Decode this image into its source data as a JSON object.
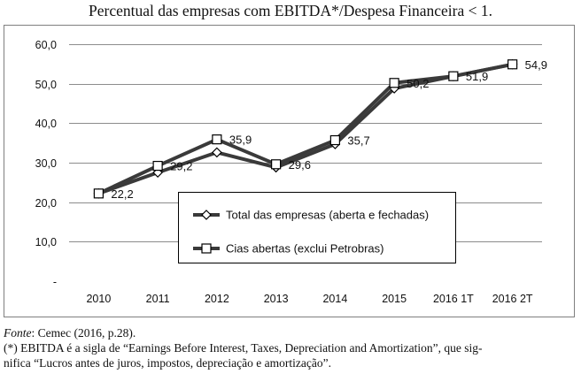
{
  "title": "Percentual das empresas com EBITDA*/Despesa Financeira < 1.",
  "chart_data": {
    "type": "line",
    "categories": [
      "2010",
      "2011",
      "2012",
      "2013",
      "2014",
      "2015",
      "2016 1T",
      "2016 2T"
    ],
    "ylim": [
      0,
      60
    ],
    "yticks": [
      "-",
      "10,0",
      "20,0",
      "30,0",
      "40,0",
      "50,0",
      "60,0"
    ],
    "grid": true,
    "legend_position": "center-bottom",
    "series": [
      {
        "name": "Total das empresas (aberta e fechadas)",
        "marker": "diamond",
        "values": [
          22.2,
          27.5,
          32.6,
          28.8,
          34.7,
          48.8,
          51.9,
          54.9
        ]
      },
      {
        "name": "Cias abertas (exclui Petrobras)",
        "marker": "square",
        "values": [
          22.2,
          29.2,
          35.9,
          29.6,
          35.7,
          50.2,
          51.9,
          54.9
        ]
      }
    ],
    "data_labels": [
      {
        "category_index": 0,
        "value": 22.2,
        "text": "22,2"
      },
      {
        "category_index": 1,
        "value": 29.2,
        "text": "29,2"
      },
      {
        "category_index": 2,
        "value": 35.9,
        "text": "35,9"
      },
      {
        "category_index": 3,
        "value": 29.6,
        "text": "29,6"
      },
      {
        "category_index": 4,
        "value": 35.7,
        "text": "35,7"
      },
      {
        "category_index": 5,
        "value": 50.2,
        "text": "50,2"
      },
      {
        "category_index": 6,
        "value": 51.9,
        "text": "51,9"
      },
      {
        "category_index": 7,
        "value": 54.9,
        "text": "54,9"
      }
    ]
  },
  "notes": {
    "source_label": "Fonte",
    "source_text": ": Cemec (2016, p.28).",
    "footnote_line1": "(*) EBITDA é a sigla de “Earnings Before Interest, Taxes, Depreciation and Amortization”, que sig-",
    "footnote_line2": "nifica “Lucros antes de juros, impostos, depreciação e amortização”."
  }
}
